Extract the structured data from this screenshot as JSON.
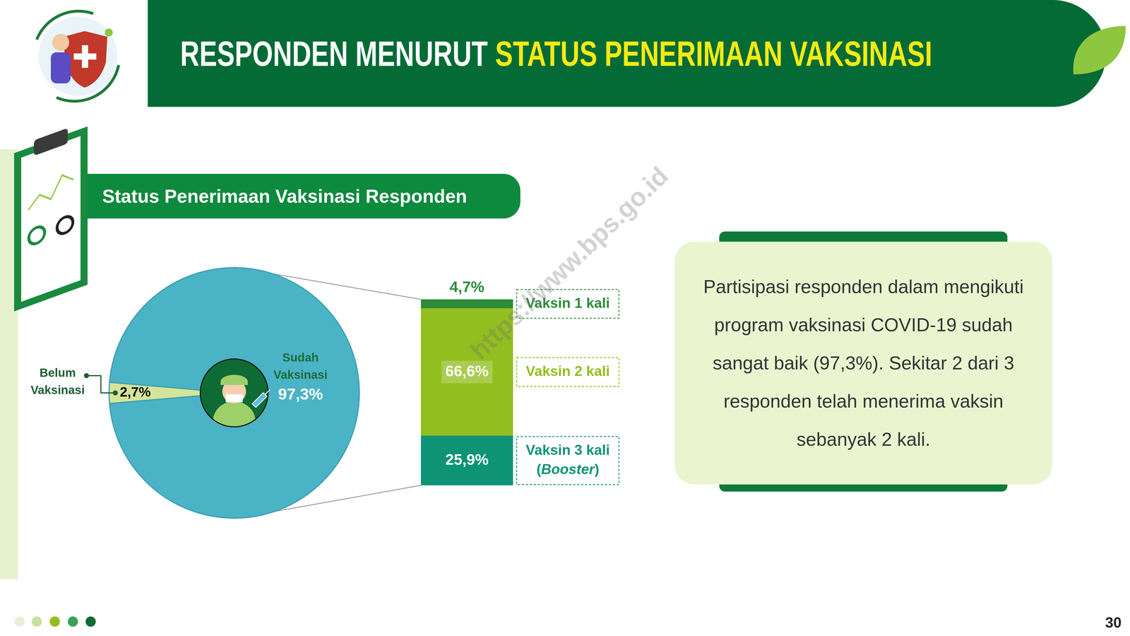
{
  "header": {
    "title_parts": [
      "RESPONDEN MENURUT",
      "STATUS PENERIMAAN VAKSINASI"
    ]
  },
  "section_title": "Status Penerimaan Vaksinasi Responden",
  "chart_data": [
    {
      "type": "pie",
      "categories": [
        "Belum Vaksinasi",
        "Sudah Vaksinasi"
      ],
      "values": [
        2.7,
        97.3
      ],
      "value_labels": [
        "2,7%",
        "97,3%"
      ],
      "colors": [
        "#D5E49B",
        "#4BB3C6"
      ],
      "data_labels": true
    },
    {
      "type": "bar",
      "stacked": true,
      "categories": [
        null
      ],
      "series": [
        {
          "name": "Vaksin 1 kali",
          "color": "#2E8B3A",
          "values": [
            4.7
          ],
          "value_labels": [
            "4,7%"
          ]
        },
        {
          "name": "Vaksin 2 kali",
          "color": "#93BE1F",
          "values": [
            66.6
          ],
          "value_labels": [
            "66,6%"
          ]
        },
        {
          "name": "Vaksin 3 kali (Booster)",
          "color": "#0E9475",
          "values": [
            25.9
          ],
          "value_labels": [
            "25,9%"
          ]
        }
      ],
      "ylim": [
        0,
        97.2
      ],
      "grid": false,
      "tick_labels": false,
      "data_labels": true
    }
  ],
  "note": {
    "lines": [
      "Partisipasi responden dalam mengikuti",
      "program vaksinasi COVID-19 sudah",
      "sangat baik (97,3%). Sekitar 2 dari 3",
      "responden telah menerima vaksin",
      "sebanyak 2 kali."
    ]
  },
  "watermark": "https://www.bps.go.id",
  "page_number": "30"
}
